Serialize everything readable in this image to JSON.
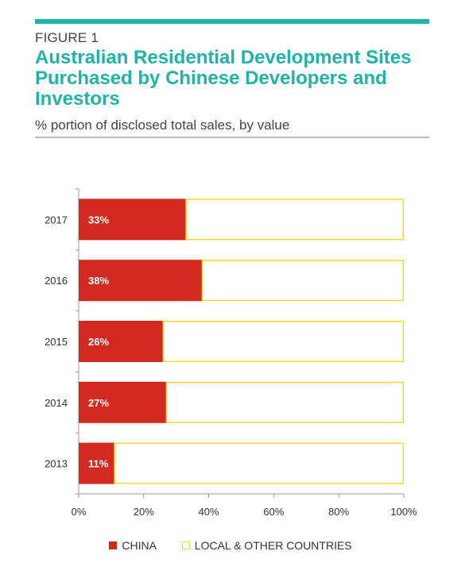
{
  "figure_label": "FIGURE 1",
  "colors": {
    "accent": "#1eb5a6",
    "china": "#d22a20",
    "other": "#f3dc2a",
    "axis": "#9a9a9a"
  },
  "chart_data": {
    "type": "bar",
    "orientation": "horizontal",
    "stacked": true,
    "title": "Australian Residential Development Sites Purchased by Chinese Developers and Investors",
    "subtitle": "% portion of disclosed total sales, by value",
    "categories": [
      "2017",
      "2016",
      "2015",
      "2014",
      "2013"
    ],
    "series": [
      {
        "name": "CHINA",
        "values": [
          33,
          38,
          26,
          27,
          11
        ]
      },
      {
        "name": "LOCAL & OTHER COUNTRIES",
        "values": [
          67,
          62,
          74,
          73,
          89
        ]
      }
    ],
    "data_labels": [
      "33%",
      "38%",
      "26%",
      "27%",
      "11%"
    ],
    "xlim": [
      0,
      100
    ],
    "xticks": [
      "0%",
      "20%",
      "40%",
      "60%",
      "80%",
      "100%"
    ],
    "xlabel": "",
    "ylabel": "",
    "grid": false,
    "legend_position": "bottom"
  }
}
